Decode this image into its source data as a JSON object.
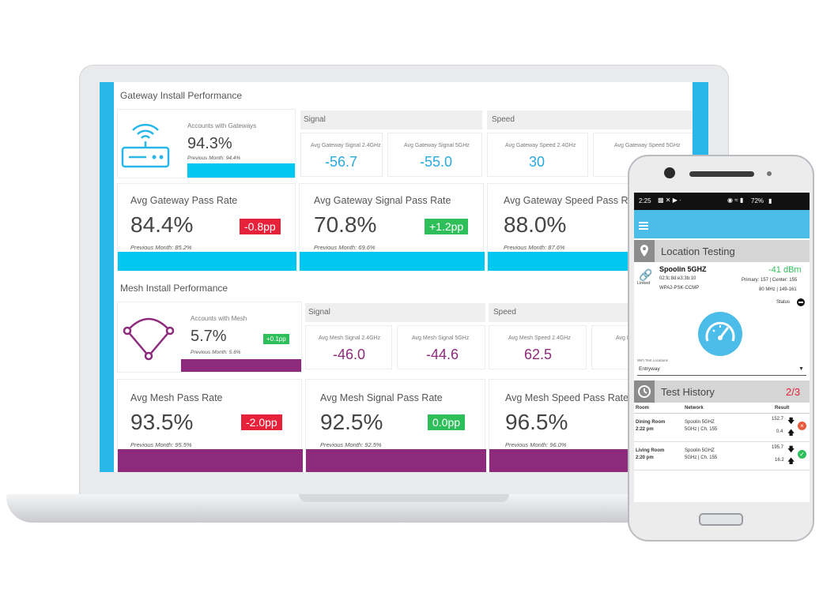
{
  "gateway": {
    "section_title": "Gateway Install Performance",
    "accounts_label": "Accounts with Gateways",
    "accounts_value": "94.3%",
    "accounts_prev": "Previous Month: 94.4%",
    "signal_header": "Signal",
    "speed_header": "Speed",
    "signal_24_label": "Avg Gateway Signal 2.4GHz",
    "signal_24_value": "-56.7",
    "signal_5_label": "Avg Gateway Signal 5GHz",
    "signal_5_value": "-55.0",
    "speed_24_label": "Avg Gateway Speed 2.4GHz",
    "speed_24_value": "30",
    "speed_5_label": "Avg Gateway Speed 5GHz",
    "pass_title": "Avg Gateway Pass Rate",
    "pass_value": "84.4%",
    "pass_delta": "-0.8pp",
    "pass_prev": "Previous Month: 85.2%",
    "signal_pass_title": "Avg Gateway Signal Pass Rate",
    "signal_pass_value": "70.8%",
    "signal_pass_delta": "+1.2pp",
    "signal_pass_prev": "Previous Month: 69.6%",
    "speed_pass_title": "Avg Gateway Speed Pass Rate",
    "speed_pass_value": "88.0%",
    "speed_pass_prev": "Previous Month: 87.6%"
  },
  "mesh": {
    "section_title": "Mesh Install Performance",
    "accounts_label": "Accounts with Mesh",
    "accounts_value": "5.7%",
    "accounts_delta": "+0.1pp",
    "accounts_prev": "Previous Month: 5.6%",
    "signal_header": "Signal",
    "speed_header": "Speed",
    "signal_24_label": "Avg Mesh Signal 2.4GHz",
    "signal_24_value": "-46.0",
    "signal_5_label": "Avg Mesh Signal 5GHz",
    "signal_5_value": "-44.6",
    "speed_24_label": "Avg Mesh Speed 2.4GHz",
    "speed_24_value": "62.5",
    "speed_5_label": "Avg M",
    "pass_title": "Avg Mesh Pass Rate",
    "pass_value": "93.5%",
    "pass_delta": "-2.0pp",
    "pass_prev": "Previous Month: 95.5%",
    "signal_pass_title": "Avg Mesh Signal Pass Rate",
    "signal_pass_value": "92.5%",
    "signal_pass_delta": "0.0pp",
    "signal_pass_prev": "Previous Month: 92.5%",
    "speed_pass_title": "Avg Mesh Speed Pass Rate",
    "speed_pass_value": "96.5%",
    "speed_pass_prev": "Previous Month: 96.0%"
  },
  "phone": {
    "status_time": "2:25",
    "status_right": "72%",
    "location_title": "Location Testing",
    "network_name": "Spoolin 5GHZ",
    "network_mac": "02:fc:8d:e3:3b:10",
    "network_security": "WPA2-PSK-CCMP",
    "linked_label": "Linked",
    "signal_dbm": "-41 dBm",
    "channel_info": "Primary: 157 | Center: 155",
    "bandwidth_info": "80 MHz | 149-161",
    "status_label": "Status",
    "test_locations_label": "WiFi Test Locations",
    "selected_location": "Entryway",
    "history_title": "Test History",
    "history_count": "2/3",
    "col_room": "Room",
    "col_network": "Network",
    "col_result": "Result",
    "rows": [
      {
        "room": "Dining Room",
        "time": "2:22 pm",
        "network": "Spoolin 5GHZ",
        "net_detail": "5GHz | Ch. 155",
        "down": "152.7",
        "up": "0.4",
        "status": "fail"
      },
      {
        "room": "Living Room",
        "time": "2:20 pm",
        "network": "Spoolin 5GHZ",
        "net_detail": "5GHz | Ch. 155",
        "down": "195.7",
        "up": "16.2",
        "status": "pass"
      }
    ]
  },
  "colors": {
    "cyan": "#00c8f0",
    "purple": "#8e2a7c",
    "red_badge": "#e8213a",
    "green_badge": "#2fbf5a",
    "signal_gateway": "#29a9e0",
    "signal_mesh": "#8e2a7c"
  }
}
